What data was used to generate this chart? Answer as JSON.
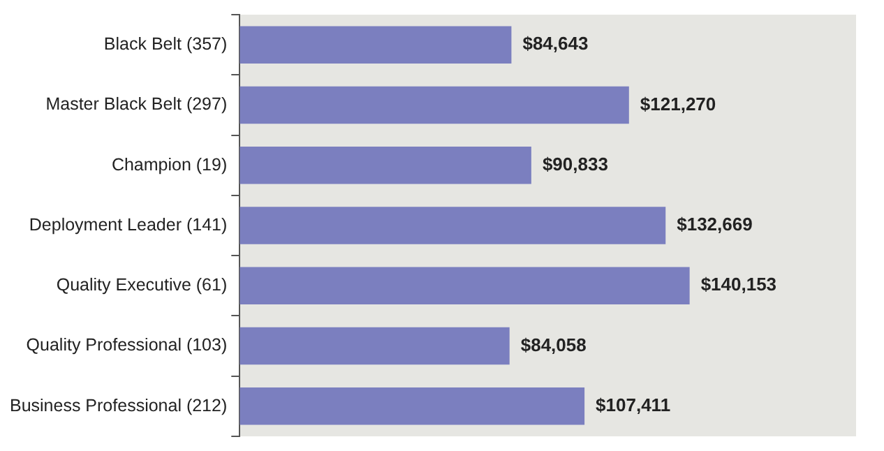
{
  "chart_data": {
    "type": "bar",
    "orientation": "horizontal",
    "categories": [
      "Black Belt (357)",
      "Master Black Belt (297)",
      "Champion (19)",
      "Deployment Leader (141)",
      "Quality Executive (61)",
      "Quality Professional (103)",
      "Business Professional (212)"
    ],
    "values": [
      84643,
      121270,
      90833,
      132669,
      140153,
      84058,
      107411
    ],
    "value_labels": [
      "$84,643",
      "$121,270",
      "$90,833",
      "$132,669",
      "$140,153",
      "$84,058",
      "$107,411"
    ],
    "color": "#7b7fbf",
    "xlim": [
      0,
      192000
    ],
    "tick_labels": "y",
    "grid": false,
    "legend": false
  }
}
